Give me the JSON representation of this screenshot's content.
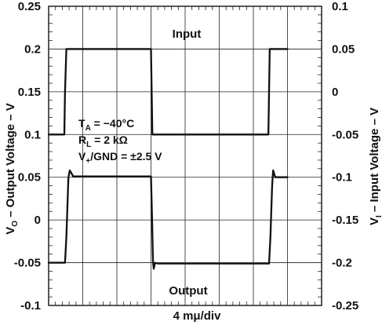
{
  "chart_data": {
    "type": "line",
    "xlabel": "4 mμ/div",
    "ylabel_left": {
      "symbol": "V",
      "subscript": "O",
      "text": " – Output Voltage – V"
    },
    "ylabel_right": {
      "symbol": "V",
      "subscript": "I",
      "text": " – Input Voltage – V"
    },
    "x_divisions": 8,
    "ylim_left": [
      -0.1,
      0.25
    ],
    "ylim_right": [
      -0.25,
      0.1
    ],
    "yticks_left": [
      "0.25",
      "0.2",
      "0.15",
      "0.1",
      "0.05",
      "0",
      "-0.05",
      "-0.1"
    ],
    "yticks_right": [
      "0.1",
      "0.05",
      "0",
      "-0.05",
      "-0.1",
      "-0.15",
      "-0.2",
      "-0.25"
    ],
    "grid": true,
    "annotations": {
      "input": "Input",
      "output": "Output"
    },
    "conditions": {
      "ta": {
        "symbol": "T",
        "subscript": "A",
        "text": " = −40°C"
      },
      "rl": {
        "symbol": "R",
        "subscript": "L",
        "text": " = 2 kΩ"
      },
      "supply": {
        "symbol": "V",
        "subscript": "+",
        "text": "/GND = ±2.5 V"
      }
    },
    "series": [
      {
        "name": "Input",
        "axis": "right",
        "x": [
          0,
          0.46,
          0.48,
          0.52,
          3.0,
          3.02,
          3.04,
          3.06,
          6.44,
          6.46,
          6.48,
          6.52,
          7.0
        ],
        "y": [
          -0.05,
          -0.05,
          0.0,
          0.05,
          0.05,
          0.0,
          -0.05,
          -0.05,
          -0.05,
          0.0,
          0.05,
          0.05,
          0.05
        ]
      },
      {
        "name": "Output",
        "axis": "left",
        "x": [
          0,
          0.48,
          0.52,
          0.58,
          0.62,
          0.72,
          3.0,
          3.02,
          3.06,
          3.08,
          3.12,
          3.2,
          6.46,
          6.5,
          6.55,
          6.58,
          6.64,
          6.7,
          7.0
        ],
        "y": [
          -0.05,
          -0.05,
          -0.02,
          0.05,
          0.058,
          0.051,
          0.051,
          0.02,
          -0.05,
          -0.057,
          -0.05,
          -0.051,
          -0.051,
          -0.02,
          0.04,
          0.058,
          0.05,
          0.05,
          0.05
        ]
      }
    ]
  }
}
